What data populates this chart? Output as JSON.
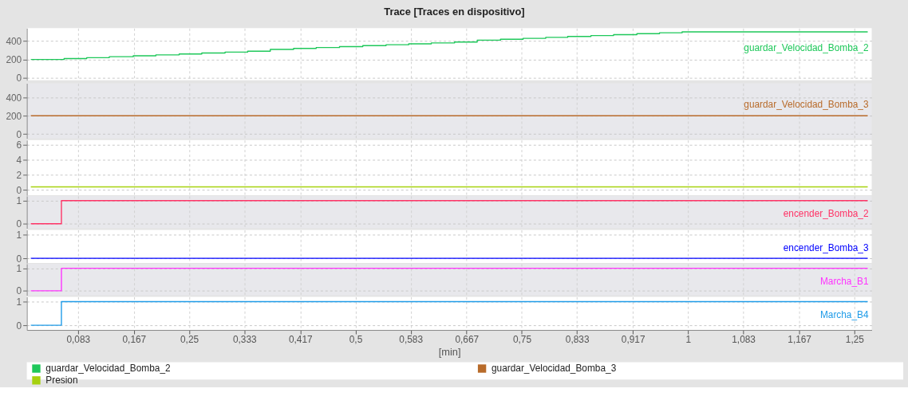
{
  "chart_data": [
    {
      "type": "step",
      "title": "Trace [Traces en dispositivo]",
      "legend": "bottom",
      "grid": true,
      "tick_labels": "y",
      "annotations": [
        "guardar_Velocidad_Bomba_2"
      ],
      "xlim": [
        0.006,
        1.276
      ],
      "ylim": [
        -25,
        540
      ],
      "yticks": [
        0,
        200,
        400
      ],
      "xticks": [
        {
          "value": 0.083,
          "label": null
        },
        {
          "value": 0.167,
          "label": null
        },
        {
          "value": 0.25,
          "label": null
        },
        {
          "value": 0.333,
          "label": null
        },
        {
          "value": 0.417,
          "label": null
        },
        {
          "value": 0.5,
          "label": null
        },
        {
          "value": 0.583,
          "label": null
        },
        {
          "value": 0.667,
          "label": null
        },
        {
          "value": 0.75,
          "label": null
        },
        {
          "value": 0.833,
          "label": null
        },
        {
          "value": 0.917,
          "label": null
        },
        {
          "value": 1,
          "label": null
        },
        {
          "value": 1.083,
          "label": null
        },
        {
          "value": 1.167,
          "label": null
        },
        {
          "value": 1.25,
          "label": null
        }
      ],
      "series": [
        {
          "name": "guardar_Velocidad_Bomba_2",
          "color": "#1ec85a",
          "x": [
            0.012,
            0.062,
            0.096,
            0.13,
            0.166,
            0.2,
            0.235,
            0.269,
            0.304,
            0.338,
            0.372,
            0.407,
            0.441,
            0.476,
            0.511,
            0.546,
            0.58,
            0.614,
            0.649,
            0.683,
            0.718,
            0.752,
            0.786,
            0.819,
            0.854,
            0.888,
            0.923,
            0.957,
            0.991,
            1.27
          ],
          "values": [
            200,
            210,
            220,
            230,
            240,
            250,
            260,
            270,
            280,
            290,
            310,
            320,
            330,
            340,
            350,
            360,
            370,
            380,
            390,
            410,
            420,
            430,
            440,
            450,
            460,
            470,
            480,
            490,
            500,
            500
          ]
        }
      ]
    },
    {
      "type": "step",
      "legend": "bottom",
      "grid": true,
      "tick_labels": "y",
      "annotations": [
        "guardar_Velocidad_Bomba_3"
      ],
      "xlim": [
        0.006,
        1.276
      ],
      "ylim": [
        -50,
        555
      ],
      "yticks": [
        0,
        200,
        400
      ],
      "xticks": [
        {
          "value": 0.083,
          "label": null
        },
        {
          "value": 0.167,
          "label": null
        },
        {
          "value": 0.25,
          "label": null
        },
        {
          "value": 0.333,
          "label": null
        },
        {
          "value": 0.417,
          "label": null
        },
        {
          "value": 0.5,
          "label": null
        },
        {
          "value": 0.583,
          "label": null
        },
        {
          "value": 0.667,
          "label": null
        },
        {
          "value": 0.75,
          "label": null
        },
        {
          "value": 0.833,
          "label": null
        },
        {
          "value": 0.917,
          "label": null
        },
        {
          "value": 1,
          "label": null
        },
        {
          "value": 1.083,
          "label": null
        },
        {
          "value": 1.167,
          "label": null
        },
        {
          "value": 1.25,
          "label": null
        }
      ],
      "series": [
        {
          "name": "guardar_Velocidad_Bomba_3",
          "color": "#b86b2a",
          "x": [
            0.012,
            1.27
          ],
          "values": [
            200,
            200
          ]
        }
      ]
    },
    {
      "type": "step",
      "legend": "bottom",
      "grid": true,
      "tick_labels": "y",
      "xlim": [
        0.006,
        1.276
      ],
      "ylim": [
        -0.7,
        6.6
      ],
      "yticks": [
        0,
        2,
        4,
        6
      ],
      "xticks": [
        {
          "value": 0.083,
          "label": null
        },
        {
          "value": 0.167,
          "label": null
        },
        {
          "value": 0.25,
          "label": null
        },
        {
          "value": 0.333,
          "label": null
        },
        {
          "value": 0.417,
          "label": null
        },
        {
          "value": 0.5,
          "label": null
        },
        {
          "value": 0.583,
          "label": null
        },
        {
          "value": 0.667,
          "label": null
        },
        {
          "value": 0.75,
          "label": null
        },
        {
          "value": 0.833,
          "label": null
        },
        {
          "value": 0.917,
          "label": null
        },
        {
          "value": 1,
          "label": null
        },
        {
          "value": 1.083,
          "label": null
        },
        {
          "value": 1.167,
          "label": null
        },
        {
          "value": 1.25,
          "label": null
        }
      ],
      "series": [
        {
          "name": "Presion",
          "color": "#a6d10f",
          "x": [
            0.012,
            1.27
          ],
          "values": [
            0.4,
            0.4
          ]
        }
      ]
    },
    {
      "type": "step",
      "grid": true,
      "tick_labels": "y",
      "xlim": [
        0.006,
        1.276
      ],
      "ylim": [
        -0.2,
        1.2
      ],
      "yticks": [
        0,
        1
      ],
      "xticks": [
        {
          "value": 0.083,
          "label": null
        },
        {
          "value": 0.167,
          "label": null
        },
        {
          "value": 0.25,
          "label": null
        },
        {
          "value": 0.333,
          "label": null
        },
        {
          "value": 0.417,
          "label": null
        },
        {
          "value": 0.5,
          "label": null
        },
        {
          "value": 0.583,
          "label": null
        },
        {
          "value": 0.667,
          "label": null
        },
        {
          "value": 0.75,
          "label": null
        },
        {
          "value": 0.833,
          "label": null
        },
        {
          "value": 0.917,
          "label": null
        },
        {
          "value": 1,
          "label": null
        },
        {
          "value": 1.083,
          "label": null
        },
        {
          "value": 1.167,
          "label": null
        },
        {
          "value": 1.25,
          "label": null
        }
      ],
      "series": [
        {
          "name": "encender_Bomba_2",
          "color": "#ff3366",
          "x": [
            0.012,
            0.058,
            1.27
          ],
          "values": [
            0,
            1,
            1
          ]
        }
      ]
    },
    {
      "type": "step",
      "grid": true,
      "tick_labels": "y",
      "xlim": [
        0.006,
        1.276
      ],
      "ylim": [
        -0.2,
        1.2
      ],
      "yticks": [
        0,
        1
      ],
      "xticks": [
        {
          "value": 0.083,
          "label": null
        },
        {
          "value": 0.167,
          "label": null
        },
        {
          "value": 0.25,
          "label": null
        },
        {
          "value": 0.333,
          "label": null
        },
        {
          "value": 0.417,
          "label": null
        },
        {
          "value": 0.5,
          "label": null
        },
        {
          "value": 0.583,
          "label": null
        },
        {
          "value": 0.667,
          "label": null
        },
        {
          "value": 0.75,
          "label": null
        },
        {
          "value": 0.833,
          "label": null
        },
        {
          "value": 0.917,
          "label": null
        },
        {
          "value": 1,
          "label": null
        },
        {
          "value": 1.083,
          "label": null
        },
        {
          "value": 1.167,
          "label": null
        },
        {
          "value": 1.25,
          "label": null
        }
      ],
      "series": [
        {
          "name": "encender_Bomba_3",
          "color": "#0000ff",
          "x": [
            0.012,
            1.27
          ],
          "values": [
            0,
            0
          ]
        }
      ]
    },
    {
      "type": "step",
      "grid": true,
      "tick_labels": "y",
      "xlim": [
        0.006,
        1.276
      ],
      "ylim": [
        -0.2,
        1.2
      ],
      "yticks": [
        0,
        1
      ],
      "xticks": [
        {
          "value": 0.083,
          "label": null
        },
        {
          "value": 0.167,
          "label": null
        },
        {
          "value": 0.25,
          "label": null
        },
        {
          "value": 0.333,
          "label": null
        },
        {
          "value": 0.417,
          "label": null
        },
        {
          "value": 0.5,
          "label": null
        },
        {
          "value": 0.583,
          "label": null
        },
        {
          "value": 0.667,
          "label": null
        },
        {
          "value": 0.75,
          "label": null
        },
        {
          "value": 0.833,
          "label": null
        },
        {
          "value": 0.917,
          "label": null
        },
        {
          "value": 1,
          "label": null
        },
        {
          "value": 1.083,
          "label": null
        },
        {
          "value": 1.167,
          "label": null
        },
        {
          "value": 1.25,
          "label": null
        }
      ],
      "series": [
        {
          "name": "Marcha_B1",
          "color": "#ff33ff",
          "x": [
            0.012,
            0.058,
            1.27
          ],
          "values": [
            0,
            1,
            1
          ]
        }
      ]
    },
    {
      "type": "step",
      "grid": true,
      "xlabel": "[min]",
      "xlim": [
        0.006,
        1.276
      ],
      "ylim": [
        -0.2,
        1.2
      ],
      "yticks": [
        0,
        1
      ],
      "xticks": [
        {
          "value": 0.083,
          "label": "0,083"
        },
        {
          "value": 0.167,
          "label": "0,167"
        },
        {
          "value": 0.25,
          "label": "0,25"
        },
        {
          "value": 0.333,
          "label": "0,333"
        },
        {
          "value": 0.417,
          "label": "0,417"
        },
        {
          "value": 0.5,
          "label": "0,5"
        },
        {
          "value": 0.583,
          "label": "0,583"
        },
        {
          "value": 0.667,
          "label": "0,667"
        },
        {
          "value": 0.75,
          "label": "0,75"
        },
        {
          "value": 0.833,
          "label": "0,833"
        },
        {
          "value": 0.917,
          "label": "0,917"
        },
        1,
        {
          "value": 1.083,
          "label": "1,083"
        },
        {
          "value": 1.167,
          "label": "1,167"
        },
        {
          "value": 1.25,
          "label": "1,25"
        }
      ],
      "series": [
        {
          "name": "Marcha_B4",
          "color": "#1e9be8",
          "x": [
            0.012,
            0.058,
            1.27
          ],
          "values": [
            0,
            1,
            1
          ]
        }
      ]
    }
  ]
}
